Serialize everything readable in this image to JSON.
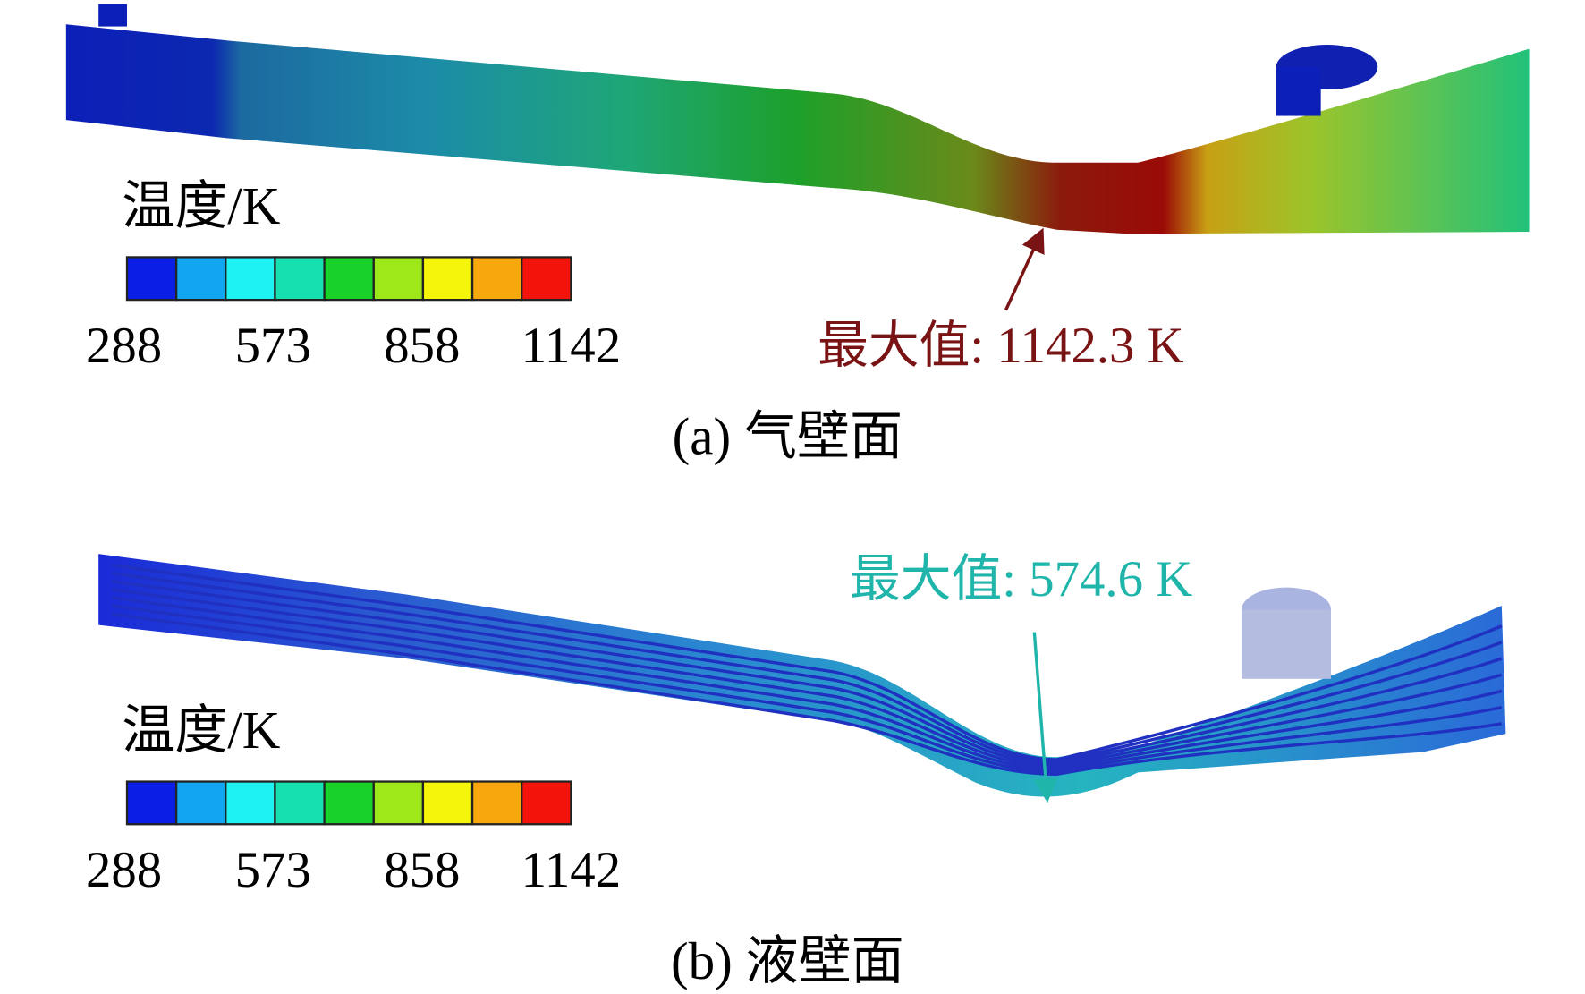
{
  "legend_colors": [
    "#0a1ee6",
    "#12a6f0",
    "#1ef2f2",
    "#17e0b0",
    "#18d22a",
    "#9ee81a",
    "#f5f50a",
    "#f7a80c",
    "#f2140a"
  ],
  "panels": [
    {
      "legend_title": "温度/K",
      "legend_ticks": [
        288,
        573,
        858,
        1142
      ],
      "annotation": "最大值: 1142.3 K",
      "caption": "(a) 气壁面"
    },
    {
      "legend_title": "温度/K",
      "legend_ticks": [
        288,
        573,
        858,
        1142
      ],
      "annotation": "最大值: 574.6 K",
      "caption": "(b) 液壁面"
    }
  ]
}
